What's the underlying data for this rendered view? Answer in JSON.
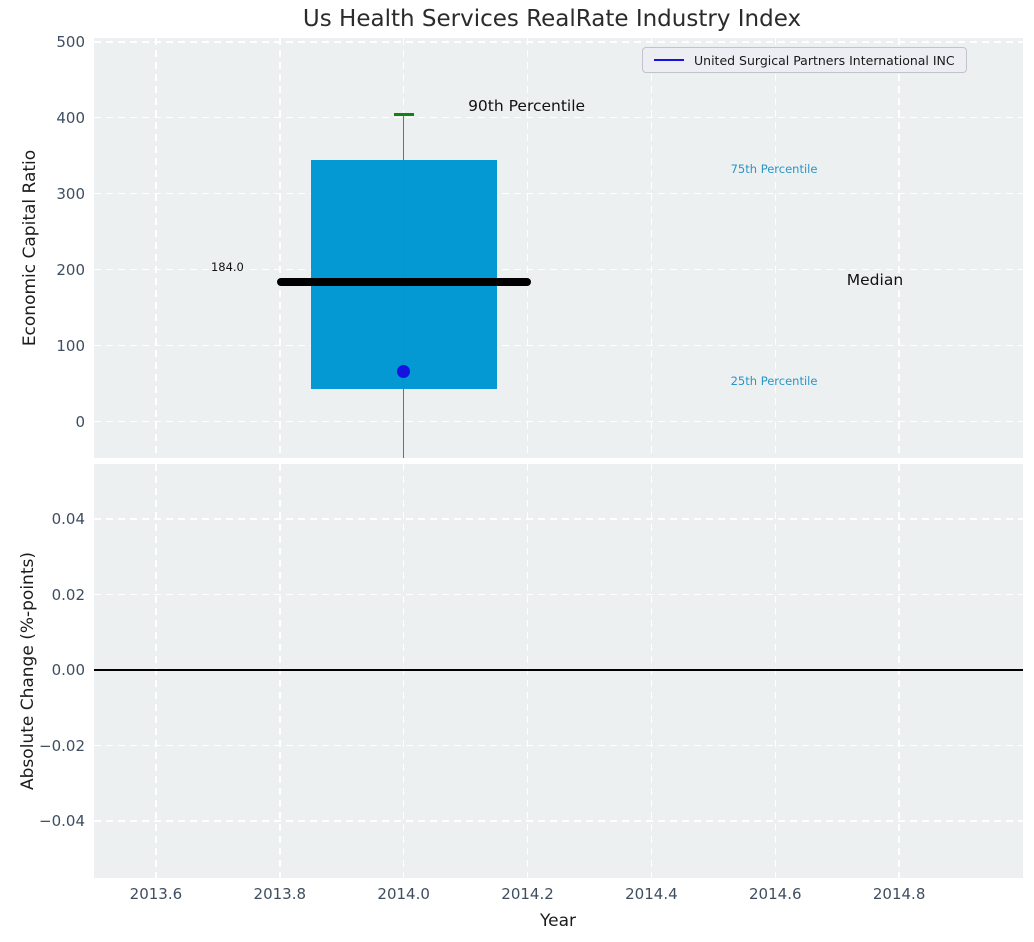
{
  "figure": {
    "title": "Us Health Services RealRate Industry Index",
    "background": "#ffffff"
  },
  "legend": {
    "label": "United Surgical Partners International INC",
    "line_color": "#1414e0"
  },
  "colors": {
    "plot_bg": "#edf0f1",
    "grid": "#ffffff",
    "box_fill": "#0499d2",
    "median_line": "#000000",
    "cap_90th": "#128312",
    "company_point": "#1414e0",
    "whisker": "#707070",
    "tick_label": "#3e4e60",
    "percentile_label": "#2a95c5",
    "zero_line": "#000000"
  },
  "chart_data": [
    {
      "type": "box",
      "title": "Us Health Services RealRate Industry Index",
      "ylabel": "Economic Capital Ratio",
      "xlabel": "Year",
      "xlim": [
        2013.5,
        2015.0
      ],
      "ylim": [
        -48,
        505
      ],
      "xticks": [
        2013.6,
        2013.8,
        2014.0,
        2014.2,
        2014.4,
        2014.6,
        2014.8
      ],
      "xtick_labels": [
        "2013.6",
        "2013.8",
        "2014.0",
        "2014.2",
        "2014.4",
        "2014.6",
        "2014.8"
      ],
      "yticks": [
        0,
        100,
        200,
        300,
        400,
        500
      ],
      "ytick_labels": [
        "0",
        "100",
        "200",
        "300",
        "400",
        "500"
      ],
      "grid": "white-dashed",
      "legend_position": "upper right",
      "series_label": "United Surgical Partners International INC",
      "box": {
        "center_x": 2014.0,
        "half_width": 0.15,
        "q1": 43,
        "median": 184.0,
        "q3": 344,
        "p90_cap": 404,
        "median_label": "184.0",
        "median_line_half_width": 0.205,
        "cap_half_width": 0.016,
        "whisker_bottom": -48
      },
      "company_point": {
        "x": 2014.0,
        "y": 66
      },
      "annotations": [
        {
          "text": "90th Percentile",
          "x": 2014.104,
          "y": 415,
          "anchor": "start",
          "color": "#111111",
          "size": 15.5
        },
        {
          "text": "75th Percentile",
          "x": 2014.598,
          "y": 333,
          "anchor": "middle",
          "color": "#2a95c5",
          "size": 11.5
        },
        {
          "text": "Median",
          "x": 2014.761,
          "y": 186,
          "anchor": "middle",
          "color": "#111111",
          "size": 15.5
        },
        {
          "text": "25th Percentile",
          "x": 2014.598,
          "y": 53,
          "anchor": "middle",
          "color": "#2a95c5",
          "size": 11.5
        },
        {
          "text": "184.0",
          "x": 2013.742,
          "y": 203,
          "anchor": "end",
          "color": "#111111",
          "size": 11.5
        }
      ]
    },
    {
      "type": "line",
      "ylabel": "Absolute Change (%-points)",
      "xlabel": "Year",
      "xlim": [
        2013.5,
        2015.0
      ],
      "ylim": [
        -0.0551,
        0.0546
      ],
      "xticks": [
        2013.6,
        2013.8,
        2014.0,
        2014.2,
        2014.4,
        2014.6,
        2014.8
      ],
      "xtick_labels": [
        "2013.6",
        "2013.8",
        "2014.0",
        "2014.2",
        "2014.4",
        "2014.6",
        "2014.8"
      ],
      "yticks": [
        0.04,
        0.02,
        0.0,
        -0.02,
        -0.04
      ],
      "ytick_labels": [
        "0.04",
        "0.02",
        "0.00",
        "−0.02",
        "−0.04"
      ],
      "grid": "white-dashed",
      "zero_line_y": 0.0,
      "series": [
        {
          "name": "United Surgical Partners International INC",
          "x": [],
          "y": []
        }
      ]
    }
  ]
}
